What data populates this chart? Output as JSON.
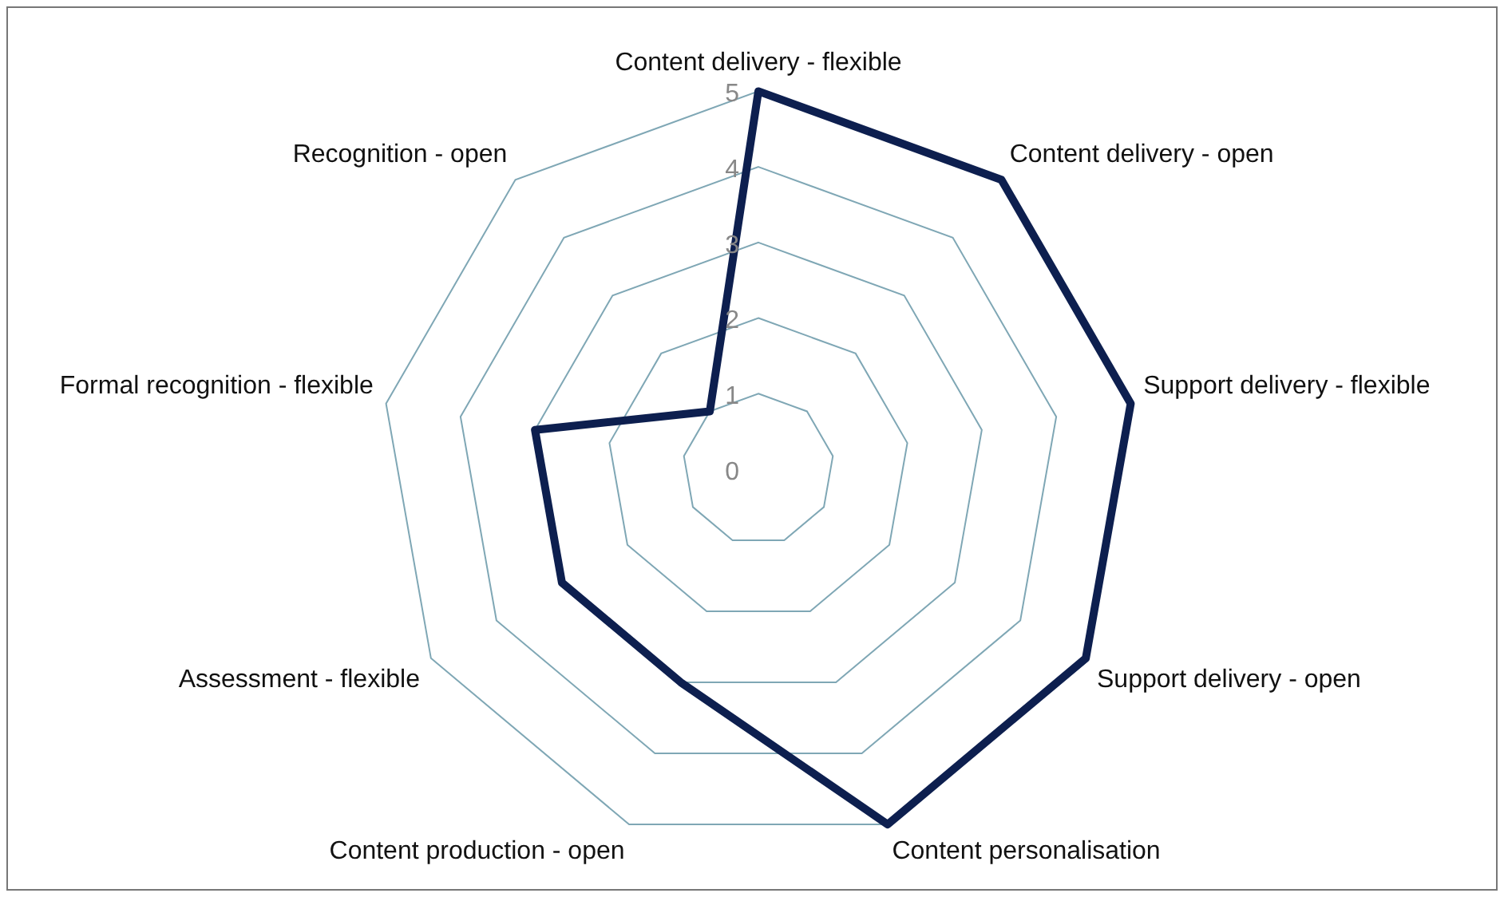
{
  "chart_data": {
    "type": "radar",
    "categories": [
      "Content delivery - flexible",
      "Content delivery - open",
      "Support delivery - flexible",
      "Support delivery - open",
      "Content personalisation",
      "Content production - open",
      "Assessment - flexible",
      "Formal recognition - flexible",
      "Recognition - open"
    ],
    "series": [
      {
        "color": "#0d1f4f",
        "values": [
          5,
          5,
          5,
          5,
          5,
          3,
          3,
          3,
          1
        ]
      }
    ],
    "ylim": [
      0,
      5
    ],
    "yticks": [
      0,
      1,
      2,
      3,
      4,
      5
    ],
    "grid": true,
    "legend": false,
    "marker": "none",
    "line_style": "solid"
  }
}
